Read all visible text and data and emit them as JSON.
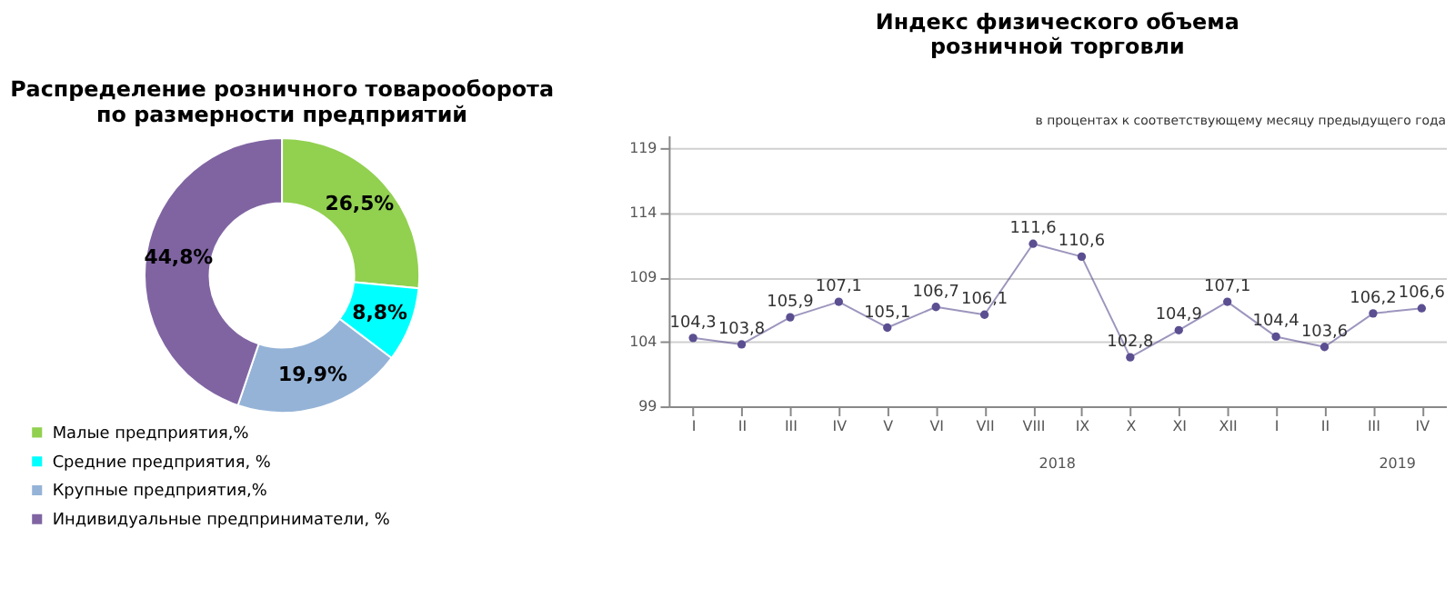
{
  "chart_data": [
    {
      "type": "donut",
      "title": "Распределение розничного товарооборота\nпо размерности предприятий",
      "categories": [
        "Малые предприятия,%",
        "Средние предприятия, %",
        "Крупные предприятия,%",
        "Индивидуальные предприниматели, %"
      ],
      "values": [
        26.5,
        8.8,
        19.9,
        44.8
      ],
      "colors": [
        "#92d050",
        "#00ffff",
        "#95b3d7",
        "#8064a2"
      ],
      "value_labels": [
        "26,5%",
        "8,8%",
        "19,9%",
        "44,8%"
      ],
      "legend": "bottom left"
    },
    {
      "type": "line",
      "title": "Индекс физического объема\nрозничной торговли",
      "subtitle": "в процентах к соответствующему месяцу предыдущего года",
      "categories": [
        "I",
        "II",
        "III",
        "IV",
        "V",
        "VI",
        "VII",
        "VIII",
        "IX",
        "X",
        "XI",
        "XII",
        "I",
        "II",
        "III",
        "IV"
      ],
      "series": [
        {
          "color": "#5b4f91",
          "values": [
            104.3,
            103.8,
            105.9,
            107.1,
            105.1,
            106.7,
            106.1,
            111.6,
            110.6,
            102.8,
            104.9,
            107.1,
            104.4,
            103.6,
            106.2,
            106.6
          ],
          "value_labels": [
            "104,3",
            "103,8",
            "105,9",
            "107,1",
            "105,1",
            "106,7",
            "106,1",
            "111,6",
            "110,6",
            "102,8",
            "104,9",
            "107,1",
            "104,4",
            "103,6",
            "106,2",
            "106,6"
          ]
        }
      ],
      "ylim": [
        99,
        120
      ],
      "yticks": [
        99,
        104,
        109,
        114,
        119
      ],
      "grid": "y",
      "marker": "circle",
      "line_style": "solid",
      "annotations": [
        "2018",
        "2019"
      ]
    }
  ]
}
